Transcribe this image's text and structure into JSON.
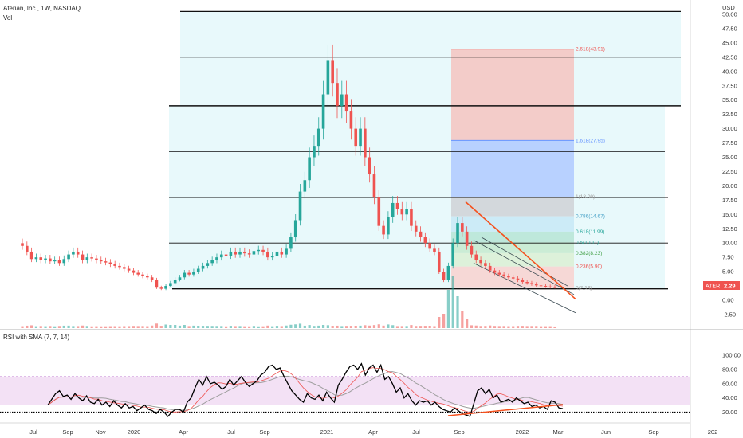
{
  "header": {
    "title": "Aterian, Inc., 1W, NASDAQ",
    "volume_label": "Vol",
    "currency": "USD"
  },
  "price_badge": {
    "ticker": "ATER",
    "value": "2.29",
    "price": 2.29
  },
  "colors": {
    "up": "#26a69a",
    "down": "#ef5350",
    "fib_zone": "#e0f7fa",
    "fib_top": "#f4c7c3",
    "fib_mid": "#b3ccff",
    "trendline": "#f5511e",
    "rsi_band": "#f3e1f5",
    "rsi_line": "#000000",
    "rsi_sma1": "#ef5350",
    "rsi_sma2": "#9e9e9e"
  },
  "rsi": {
    "title": "RSI with SMA (7, 7, 14)",
    "axis_labels": [
      "100.00",
      "80.00",
      "60.00",
      "40.00",
      "20.00"
    ],
    "axis_values": [
      100,
      80,
      60,
      40,
      20
    ],
    "band": [
      30,
      70
    ],
    "values": [
      30,
      38,
      46,
      50,
      42,
      44,
      38,
      46,
      40,
      36,
      43,
      34,
      32,
      38,
      30,
      34,
      28,
      36,
      30,
      26,
      32,
      26,
      28,
      22,
      26,
      30,
      24,
      22,
      18,
      24,
      20,
      14,
      20,
      24,
      24,
      20,
      34,
      40,
      54,
      66,
      58,
      70,
      60,
      62,
      58,
      52,
      56,
      66,
      58,
      64,
      70,
      62,
      56,
      60,
      64,
      72,
      76,
      84,
      86,
      80,
      82,
      70,
      60,
      50,
      44,
      38,
      34,
      46,
      40,
      38,
      44,
      36,
      48,
      40,
      34,
      58,
      66,
      76,
      84,
      86,
      80,
      88,
      72,
      82,
      86,
      76,
      86,
      66,
      70,
      60,
      48,
      54,
      40,
      46,
      36,
      30,
      36,
      34,
      36,
      30,
      34,
      28,
      24,
      22,
      20,
      26,
      22,
      18,
      16,
      14,
      32,
      50,
      54,
      46,
      52,
      40,
      44,
      34,
      36,
      38,
      34,
      40,
      36,
      32,
      34,
      28,
      30,
      26,
      28,
      24,
      36,
      34,
      26,
      25
    ]
  },
  "chart_data": {
    "type": "candlestick",
    "title": "Aterian, Inc., 1W, NASDAQ",
    "ylabel": "USD",
    "y_axis_ticks": [
      "50.00",
      "47.50",
      "45.00",
      "42.50",
      "40.00",
      "37.50",
      "35.00",
      "32.50",
      "30.00",
      "27.50",
      "25.00",
      "22.50",
      "20.00",
      "17.50",
      "15.00",
      "12.50",
      "10.00",
      "7.50",
      "5.00",
      "2.50",
      "0.00",
      "-2.50"
    ],
    "y_axis_values": [
      50,
      47.5,
      45,
      42.5,
      40,
      37.5,
      35,
      32.5,
      30,
      27.5,
      25,
      22.5,
      20,
      17.5,
      15,
      12.5,
      10,
      7.5,
      5,
      2.5,
      0,
      -2.5
    ],
    "ylim": [
      -3.5,
      51.5
    ],
    "x_axis_ticks": [
      "Jul",
      "Sep",
      "Nov",
      "2020",
      "Apr",
      "Jul",
      "Sep",
      "2021",
      "Apr",
      "Jul",
      "Sep",
      "2022",
      "Mar",
      "Jun",
      "Sep",
      "202"
    ],
    "close": [
      9.5,
      8.5,
      7.2,
      7.5,
      7.0,
      7.3,
      6.8,
      7.0,
      6.5,
      7.2,
      8.0,
      8.5,
      8.0,
      7.0,
      7.5,
      7.3,
      7.0,
      6.8,
      6.6,
      6.3,
      6.0,
      5.8,
      5.5,
      5.2,
      4.8,
      4.5,
      4.2,
      4.0,
      3.5,
      2.2,
      2.0,
      2.5,
      3.0,
      3.6,
      4.0,
      4.8,
      4.5,
      5.0,
      5.5,
      6.0,
      6.5,
      7.0,
      7.5,
      8.0,
      7.8,
      8.5,
      8.0,
      8.5,
      8.2,
      8.0,
      8.6,
      8.8,
      8.5,
      7.5,
      7.8,
      8.5,
      8.0,
      9.0,
      11.0,
      14.0,
      19.0,
      21.0,
      25.0,
      27.0,
      30.0,
      36.0,
      42.0,
      38.0,
      34.0,
      36.0,
      33.0,
      30.0,
      27.0,
      30.0,
      25.0,
      22.0,
      18.0,
      13.0,
      11.5,
      14.5,
      17.0,
      16.0,
      15.0,
      16.0,
      13.0,
      12.0,
      11.0,
      10.0,
      9.0,
      8.5,
      5.0,
      3.5,
      6.0,
      10.0,
      13.5,
      12.0,
      9.5,
      8.0,
      7.0,
      6.5,
      6.0,
      5.2,
      4.8,
      4.5,
      4.2,
      4.0,
      3.8,
      3.5,
      3.2,
      3.0,
      2.8,
      2.6,
      2.5,
      2.4,
      2.3,
      2.29
    ],
    "annotations": {
      "fib_levels": [
        {
          "label": "2.618(43.91)",
          "value": 43.91
        },
        {
          "label": "1.618(27.95)",
          "value": 27.95
        },
        {
          "label": "1(18.09)",
          "value": 18.09
        },
        {
          "label": "0.786(14.67)",
          "value": 14.67
        },
        {
          "label": "0.618(11.99)",
          "value": 11.99
        },
        {
          "label": "0.5(10.11)",
          "value": 10.11
        },
        {
          "label": "0.382(8.23)",
          "value": 8.23
        },
        {
          "label": "0.236(5.90)",
          "value": 5.9
        },
        {
          "label": "0(2.13)",
          "value": 2.13
        }
      ],
      "horizontal_levels": [
        50.5,
        42.5,
        34.0,
        26.0,
        18.0,
        10.0,
        2.0
      ]
    }
  }
}
